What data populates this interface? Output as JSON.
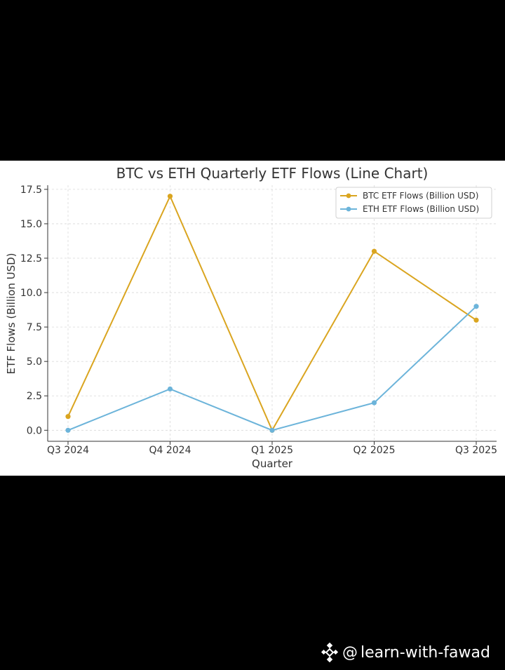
{
  "chart_data": {
    "type": "line",
    "title": "BTC vs ETH Quarterly ETF Flows (Line Chart)",
    "xlabel": "Quarter",
    "ylabel": "ETF Flows (Billion USD)",
    "categories": [
      "Q3 2024",
      "Q4 2024",
      "Q1 2025",
      "Q2 2025",
      "Q3 2025"
    ],
    "ylim": [
      -0.8,
      17.8
    ],
    "yticks": [
      "0.0",
      "2.5",
      "5.0",
      "7.5",
      "10.0",
      "12.5",
      "15.0",
      "17.5"
    ],
    "grid": true,
    "legend_position": "top-right",
    "series": [
      {
        "name": "BTC ETF Flows (Billion USD)",
        "values": [
          1,
          17,
          0,
          13,
          8
        ],
        "color": "#DAA520"
      },
      {
        "name": "ETH ETF Flows (Billion USD)",
        "values": [
          0,
          3,
          0,
          2,
          9
        ],
        "color": "#6CB4DA"
      }
    ]
  },
  "watermark": {
    "at": "@",
    "handle": "learn-with-fawad",
    "logo_icon": "binance-logo-icon"
  }
}
